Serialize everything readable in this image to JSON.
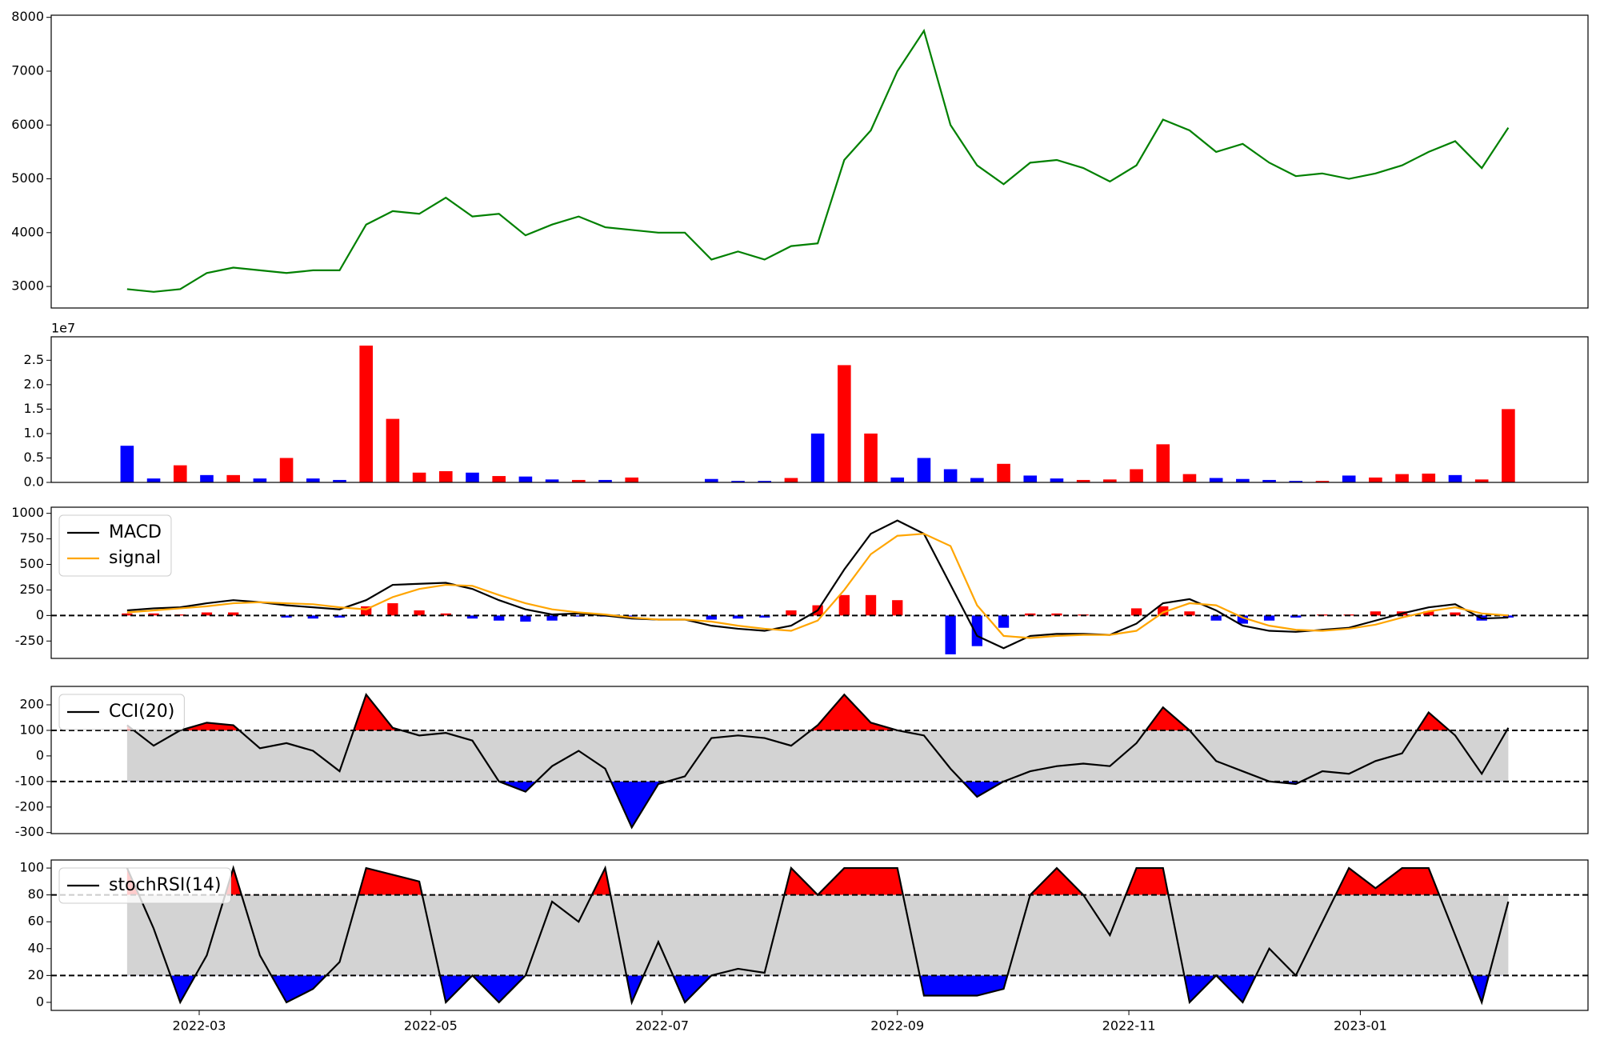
{
  "chart_data": [
    {
      "type": "line",
      "color": "green",
      "x": [
        "2022-02-10",
        "2022-02-17",
        "2022-02-24",
        "2022-03-03",
        "2022-03-10",
        "2022-03-17",
        "2022-03-24",
        "2022-03-31",
        "2022-04-07",
        "2022-04-14",
        "2022-04-21",
        "2022-04-28",
        "2022-05-05",
        "2022-05-12",
        "2022-05-19",
        "2022-05-26",
        "2022-06-02",
        "2022-06-09",
        "2022-06-16",
        "2022-06-23",
        "2022-06-30",
        "2022-07-07",
        "2022-07-14",
        "2022-07-21",
        "2022-07-28",
        "2022-08-04",
        "2022-08-11",
        "2022-08-18",
        "2022-08-25",
        "2022-09-01",
        "2022-09-08",
        "2022-09-15",
        "2022-09-22",
        "2022-09-29",
        "2022-10-06",
        "2022-10-13",
        "2022-10-20",
        "2022-10-27",
        "2022-11-03",
        "2022-11-10",
        "2022-11-17",
        "2022-11-24",
        "2022-12-01",
        "2022-12-08",
        "2022-12-15",
        "2022-12-22",
        "2022-12-29",
        "2023-01-05",
        "2023-01-12",
        "2023-01-19",
        "2023-01-26",
        "2023-02-02",
        "2023-02-09"
      ],
      "values": [
        2950,
        2900,
        2950,
        3250,
        3350,
        3300,
        3250,
        3300,
        3300,
        4150,
        4400,
        4350,
        4650,
        4300,
        4350,
        3950,
        4150,
        4300,
        4100,
        4050,
        4000,
        4000,
        3500,
        3650,
        3500,
        3750,
        3800,
        5350,
        5900,
        7000,
        7750,
        6000,
        5250,
        4900,
        5300,
        5350,
        5200,
        4950,
        5250,
        6100,
        5900,
        5500,
        5650,
        5300,
        5050,
        5100,
        5000,
        5100,
        5250,
        5500,
        5700,
        5200,
        5950
      ],
      "xlim": [
        "2022-01-21",
        "2023-03-02"
      ],
      "ylim": [
        2600,
        8040
      ],
      "yticks": [
        3000,
        4000,
        5000,
        6000,
        7000,
        8000
      ]
    },
    {
      "type": "bar",
      "offset_label": "1e7",
      "x": [
        "2022-02-10",
        "2022-02-17",
        "2022-02-24",
        "2022-03-03",
        "2022-03-10",
        "2022-03-17",
        "2022-03-24",
        "2022-03-31",
        "2022-04-07",
        "2022-04-14",
        "2022-04-21",
        "2022-04-28",
        "2022-05-05",
        "2022-05-12",
        "2022-05-19",
        "2022-05-26",
        "2022-06-02",
        "2022-06-09",
        "2022-06-16",
        "2022-06-23",
        "2022-06-30",
        "2022-07-07",
        "2022-07-14",
        "2022-07-21",
        "2022-07-28",
        "2022-08-04",
        "2022-08-11",
        "2022-08-18",
        "2022-08-25",
        "2022-09-01",
        "2022-09-08",
        "2022-09-15",
        "2022-09-22",
        "2022-09-29",
        "2022-10-06",
        "2022-10-13",
        "2022-10-20",
        "2022-10-27",
        "2022-11-03",
        "2022-11-10",
        "2022-11-17",
        "2022-11-24",
        "2022-12-01",
        "2022-12-08",
        "2022-12-15",
        "2022-12-22",
        "2022-12-29",
        "2023-01-05",
        "2023-01-12",
        "2023-01-19",
        "2023-01-26",
        "2023-02-02",
        "2023-02-09"
      ],
      "values": [
        7500000,
        800000,
        3500000,
        1500000,
        1500000,
        800000,
        5000000,
        800000,
        500000,
        28000000,
        13000000,
        2000000,
        2300000,
        2000000,
        1300000,
        1200000,
        600000,
        500000,
        500000,
        1000000,
        0,
        0,
        700000,
        300000,
        300000,
        900000,
        10000000,
        24000000,
        10000000,
        1000000,
        5000000,
        2700000,
        900000,
        3800000,
        1400000,
        800000,
        500000,
        600000,
        2700000,
        7800000,
        1700000,
        900000,
        700000,
        500000,
        300000,
        300000,
        1400000,
        1000000,
        1700000,
        1800000,
        1500000,
        600000,
        15000000
      ],
      "colors": [
        "blue",
        "blue",
        "red",
        "blue",
        "red",
        "blue",
        "red",
        "blue",
        "blue",
        "red",
        "red",
        "red",
        "red",
        "blue",
        "red",
        "blue",
        "blue",
        "red",
        "blue",
        "red",
        "blue",
        "blue",
        "blue",
        "blue",
        "blue",
        "red",
        "blue",
        "red",
        "red",
        "blue",
        "blue",
        "blue",
        "blue",
        "red",
        "blue",
        "blue",
        "red",
        "red",
        "red",
        "red",
        "red",
        "blue",
        "blue",
        "blue",
        "blue",
        "red",
        "blue",
        "red",
        "red",
        "red",
        "blue",
        "red",
        "red"
      ],
      "xlim": [
        "2022-01-21",
        "2023-03-02"
      ],
      "ylim": [
        0,
        29800000
      ],
      "yticks": [
        {
          "value": 0,
          "label": "0.0"
        },
        {
          "value": 5000000,
          "label": "0.5"
        },
        {
          "value": 10000000,
          "label": "1.0"
        },
        {
          "value": 15000000,
          "label": "1.5"
        },
        {
          "value": 20000000,
          "label": "2.0"
        },
        {
          "value": 25000000,
          "label": "2.5"
        }
      ]
    },
    {
      "type": "line",
      "legend": "upper left",
      "reference_lines": [
        0
      ],
      "x": [
        "2022-02-10",
        "2022-02-17",
        "2022-02-24",
        "2022-03-03",
        "2022-03-10",
        "2022-03-17",
        "2022-03-24",
        "2022-03-31",
        "2022-04-07",
        "2022-04-14",
        "2022-04-21",
        "2022-04-28",
        "2022-05-05",
        "2022-05-12",
        "2022-05-19",
        "2022-05-26",
        "2022-06-02",
        "2022-06-09",
        "2022-06-16",
        "2022-06-23",
        "2022-06-30",
        "2022-07-07",
        "2022-07-14",
        "2022-07-21",
        "2022-07-28",
        "2022-08-04",
        "2022-08-11",
        "2022-08-18",
        "2022-08-25",
        "2022-09-01",
        "2022-09-08",
        "2022-09-15",
        "2022-09-22",
        "2022-09-29",
        "2022-10-06",
        "2022-10-13",
        "2022-10-20",
        "2022-10-27",
        "2022-11-03",
        "2022-11-10",
        "2022-11-17",
        "2022-11-24",
        "2022-12-01",
        "2022-12-08",
        "2022-12-15",
        "2022-12-22",
        "2022-12-29",
        "2023-01-05",
        "2023-01-12",
        "2023-01-19",
        "2023-01-26",
        "2023-02-02",
        "2023-02-09"
      ],
      "series": [
        {
          "name": "MACD",
          "color": "black",
          "values": [
            50,
            70,
            80,
            120,
            150,
            130,
            100,
            80,
            60,
            150,
            300,
            310,
            320,
            260,
            150,
            60,
            10,
            20,
            0,
            -30,
            -40,
            -40,
            -100,
            -130,
            -150,
            -100,
            50,
            450,
            800,
            930,
            800,
            300,
            -200,
            -320,
            -200,
            -180,
            -180,
            -190,
            -80,
            120,
            160,
            50,
            -100,
            -150,
            -160,
            -140,
            -120,
            -50,
            20,
            80,
            110,
            -30,
            -20
          ]
        },
        {
          "name": "signal",
          "color": "orange",
          "values": [
            30,
            50,
            70,
            90,
            120,
            130,
            120,
            110,
            80,
            60,
            180,
            260,
            300,
            290,
            200,
            120,
            60,
            30,
            10,
            -20,
            -40,
            -40,
            -60,
            -100,
            -130,
            -150,
            -50,
            250,
            600,
            780,
            800,
            680,
            100,
            -200,
            -220,
            -200,
            -190,
            -190,
            -150,
            30,
            120,
            100,
            -20,
            -100,
            -140,
            -150,
            -130,
            -90,
            -20,
            40,
            80,
            20,
            0
          ]
        }
      ],
      "histogram": {
        "positive_color": "red",
        "negative_color": "blue",
        "values": [
          20,
          20,
          10,
          30,
          30,
          0,
          -20,
          -30,
          -20,
          90,
          120,
          50,
          20,
          -30,
          -50,
          -60,
          -50,
          -10,
          -10,
          -10,
          0,
          0,
          -40,
          -30,
          -20,
          50,
          100,
          200,
          200,
          150,
          0,
          -380,
          -300,
          -120,
          20,
          20,
          10,
          0,
          70,
          90,
          40,
          -50,
          -80,
          -50,
          -20,
          10,
          10,
          40,
          40,
          40,
          30,
          -50,
          -20
        ]
      },
      "xlim": [
        "2022-01-21",
        "2023-03-02"
      ],
      "ylim": [
        -420,
        1060
      ],
      "yticks": [
        -250,
        0,
        250,
        500,
        750,
        1000
      ]
    },
    {
      "type": "line",
      "legend": "upper left",
      "bands": {
        "upper": 100,
        "lower": -100,
        "inside_color": "lightgray",
        "above_color": "red",
        "below_color": "blue"
      },
      "x": [
        "2022-02-10",
        "2022-02-17",
        "2022-02-24",
        "2022-03-03",
        "2022-03-10",
        "2022-03-17",
        "2022-03-24",
        "2022-03-31",
        "2022-04-07",
        "2022-04-14",
        "2022-04-21",
        "2022-04-28",
        "2022-05-05",
        "2022-05-12",
        "2022-05-19",
        "2022-05-26",
        "2022-06-02",
        "2022-06-09",
        "2022-06-16",
        "2022-06-23",
        "2022-06-30",
        "2022-07-07",
        "2022-07-14",
        "2022-07-21",
        "2022-07-28",
        "2022-08-04",
        "2022-08-11",
        "2022-08-18",
        "2022-08-25",
        "2022-09-01",
        "2022-09-08",
        "2022-09-15",
        "2022-09-22",
        "2022-09-29",
        "2022-10-06",
        "2022-10-13",
        "2022-10-20",
        "2022-10-27",
        "2022-11-03",
        "2022-11-10",
        "2022-11-17",
        "2022-11-24",
        "2022-12-01",
        "2022-12-08",
        "2022-12-15",
        "2022-12-22",
        "2022-12-29",
        "2023-01-05",
        "2023-01-12",
        "2023-01-19",
        "2023-01-26",
        "2023-02-02",
        "2023-02-09"
      ],
      "series": [
        {
          "name": "CCI(20)",
          "color": "black",
          "values": [
            120,
            40,
            100,
            130,
            120,
            30,
            50,
            20,
            -60,
            240,
            110,
            80,
            90,
            60,
            -100,
            -140,
            -40,
            20,
            -50,
            -280,
            -110,
            -80,
            70,
            80,
            70,
            40,
            120,
            240,
            130,
            100,
            80,
            -50,
            -160,
            -100,
            -60,
            -40,
            -30,
            -40,
            50,
            190,
            100,
            -20,
            -60,
            -100,
            -110,
            -60,
            -70,
            -20,
            10,
            170,
            80,
            -70,
            110
          ]
        }
      ],
      "xlim": [
        "2022-01-21",
        "2023-03-02"
      ],
      "ylim": [
        -304,
        272
      ],
      "yticks": [
        -300,
        -200,
        -100,
        0,
        100,
        200
      ]
    },
    {
      "type": "line",
      "legend": "upper left",
      "bands": {
        "upper": 80,
        "lower": 20,
        "inside_color": "lightgray",
        "above_color": "red",
        "below_color": "blue"
      },
      "x": [
        "2022-02-10",
        "2022-02-17",
        "2022-02-24",
        "2022-03-03",
        "2022-03-10",
        "2022-03-17",
        "2022-03-24",
        "2022-03-31",
        "2022-04-07",
        "2022-04-14",
        "2022-04-21",
        "2022-04-28",
        "2022-05-05",
        "2022-05-12",
        "2022-05-19",
        "2022-05-26",
        "2022-06-02",
        "2022-06-09",
        "2022-06-16",
        "2022-06-23",
        "2022-06-30",
        "2022-07-07",
        "2022-07-14",
        "2022-07-21",
        "2022-07-28",
        "2022-08-04",
        "2022-08-11",
        "2022-08-18",
        "2022-08-25",
        "2022-09-01",
        "2022-09-08",
        "2022-09-15",
        "2022-09-22",
        "2022-09-29",
        "2022-10-06",
        "2022-10-13",
        "2022-10-20",
        "2022-10-27",
        "2022-11-03",
        "2022-11-10",
        "2022-11-17",
        "2022-11-24",
        "2022-12-01",
        "2022-12-08",
        "2022-12-15",
        "2022-12-22",
        "2022-12-29",
        "2023-01-05",
        "2023-01-12",
        "2023-01-19",
        "2023-01-26",
        "2023-02-02",
        "2023-02-09"
      ],
      "series": [
        {
          "name": "stochRSI(14)",
          "color": "black",
          "values": [
            100,
            55,
            0,
            35,
            100,
            35,
            0,
            10,
            30,
            100,
            95,
            90,
            0,
            20,
            0,
            20,
            75,
            60,
            100,
            0,
            45,
            0,
            20,
            25,
            22,
            100,
            80,
            100,
            100,
            100,
            5,
            5,
            5,
            10,
            80,
            100,
            80,
            50,
            100,
            100,
            0,
            20,
            0,
            40,
            20,
            60,
            100,
            85,
            100,
            100,
            50,
            0,
            75
          ]
        }
      ],
      "xlim": [
        "2022-01-21",
        "2023-03-02"
      ],
      "ylim": [
        -6,
        106
      ],
      "yticks": [
        0,
        20,
        40,
        60,
        80,
        100
      ],
      "xticks": [
        {
          "value": "2022-03-01",
          "label": "2022-03"
        },
        {
          "value": "2022-05-01",
          "label": "2022-05"
        },
        {
          "value": "2022-07-01",
          "label": "2022-07"
        },
        {
          "value": "2022-09-01",
          "label": "2022-09"
        },
        {
          "value": "2022-11-01",
          "label": "2022-11"
        },
        {
          "value": "2023-01-01",
          "label": "2023-01"
        }
      ]
    }
  ]
}
